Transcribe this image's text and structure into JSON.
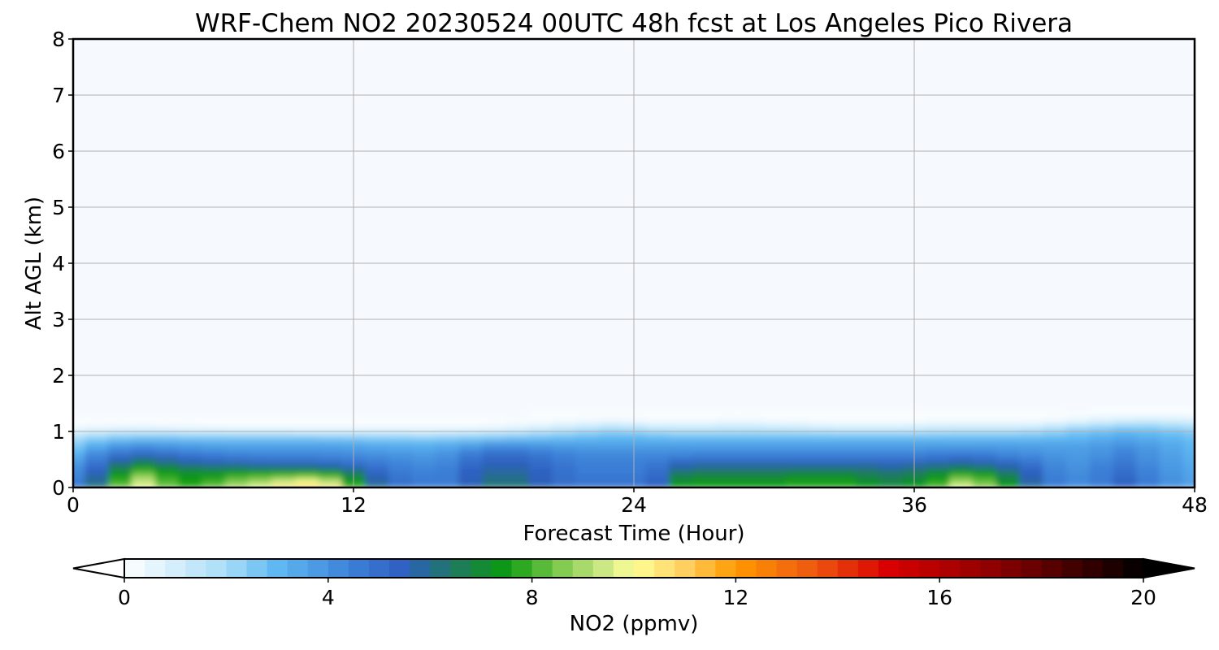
{
  "chart_data": {
    "type": "heatmap",
    "title": "WRF-Chem NO2  20230524 00UTC 48h fcst at Los Angeles Pico Rivera",
    "xlabel": "Forecast Time (Hour)",
    "ylabel": "Alt AGL (km)",
    "xlim": [
      0,
      48
    ],
    "ylim": [
      0,
      8
    ],
    "x_ticks": [
      "0",
      "12",
      "24",
      "36",
      "48"
    ],
    "y_ticks": [
      "0",
      "1",
      "2",
      "3",
      "4",
      "5",
      "6",
      "7",
      "8"
    ],
    "grid": true,
    "colorbar": {
      "label": "NO2  (ppmv)",
      "range": [
        0,
        20
      ],
      "ticks": [
        "0",
        "4",
        "8",
        "12",
        "16",
        "20"
      ],
      "extend": "both",
      "orientation": "horizontal",
      "colors": [
        {
          "value": 0,
          "color": "#ffffff"
        },
        {
          "value": 2,
          "color": "#a8dcf8"
        },
        {
          "value": 3,
          "color": "#5fb8f2"
        },
        {
          "value": 4.5,
          "color": "#3b7fd6"
        },
        {
          "value": 5.5,
          "color": "#2e5fc0"
        },
        {
          "value": 6.5,
          "color": "#1e7a5e"
        },
        {
          "value": 7.5,
          "color": "#0a9a10"
        },
        {
          "value": 8.5,
          "color": "#7bc84a"
        },
        {
          "value": 9.5,
          "color": "#d4ec8c"
        },
        {
          "value": 10,
          "color": "#ffff96"
        },
        {
          "value": 11,
          "color": "#ffd060"
        },
        {
          "value": 12,
          "color": "#ff9a00"
        },
        {
          "value": 13.5,
          "color": "#ee5a10"
        },
        {
          "value": 15,
          "color": "#d80000"
        },
        {
          "value": 17,
          "color": "#900000"
        },
        {
          "value": 19,
          "color": "#300000"
        },
        {
          "value": 20,
          "color": "#000000"
        }
      ]
    },
    "background_color": "#f6fafe",
    "x": [
      0,
      1,
      2,
      3,
      4,
      5,
      6,
      7,
      8,
      9,
      10,
      11,
      12,
      13,
      14,
      15,
      16,
      17,
      18,
      19,
      20,
      21,
      22,
      23,
      24,
      25,
      26,
      27,
      28,
      29,
      30,
      31,
      32,
      33,
      34,
      35,
      36,
      37,
      38,
      39,
      40,
      41,
      42,
      43,
      44,
      45,
      46,
      47,
      48
    ],
    "y": [
      0,
      0.1,
      0.2,
      0.3,
      0.4,
      0.5,
      0.6,
      0.7,
      0.8,
      0.9,
      1.0,
      1.1,
      1.2,
      1.3,
      1.4
    ],
    "z": [
      [
        4.8,
        6.2,
        8.5,
        9.8,
        8.4,
        7.8,
        8.4,
        9.2,
        9.8,
        10.8,
        11.4,
        10.6,
        8.0,
        6.0,
        5.0,
        4.6,
        4.6,
        5.6,
        6.2,
        6.2,
        5.6,
        5.0,
        4.8,
        4.8,
        4.8,
        5.5,
        7.4,
        7.6,
        7.6,
        7.6,
        7.6,
        7.8,
        7.8,
        7.8,
        7.4,
        7.0,
        7.4,
        8.2,
        9.8,
        8.8,
        7.4,
        5.8,
        4.6,
        4.2,
        4.6,
        5.4,
        4.6,
        4.0,
        3.6
      ],
      [
        4.6,
        6.0,
        8.0,
        9.4,
        8.2,
        7.6,
        8.0,
        8.6,
        9.0,
        9.6,
        10.0,
        9.4,
        7.6,
        5.8,
        4.9,
        4.6,
        4.6,
        5.6,
        6.2,
        6.2,
        5.6,
        5.0,
        4.8,
        4.8,
        4.8,
        5.4,
        7.2,
        7.4,
        7.4,
        7.4,
        7.4,
        7.6,
        7.6,
        7.6,
        7.2,
        6.8,
        7.2,
        7.8,
        9.0,
        8.4,
        7.2,
        5.8,
        4.6,
        4.2,
        4.6,
        5.4,
        4.6,
        4.0,
        3.6
      ],
      [
        4.4,
        5.8,
        7.6,
        8.8,
        7.8,
        7.4,
        7.6,
        8.0,
        8.2,
        8.4,
        8.6,
        8.2,
        7.0,
        5.6,
        4.8,
        4.5,
        4.6,
        5.5,
        6.0,
        6.0,
        5.5,
        5.0,
        4.7,
        4.7,
        4.7,
        5.2,
        6.8,
        7.0,
        7.0,
        7.0,
        7.0,
        7.2,
        7.2,
        7.2,
        6.8,
        6.6,
        6.8,
        7.4,
        8.2,
        7.8,
        6.8,
        5.6,
        4.5,
        4.2,
        4.6,
        5.2,
        4.5,
        4.0,
        3.6
      ],
      [
        4.2,
        5.4,
        7.0,
        8.0,
        7.4,
        7.0,
        7.0,
        7.2,
        7.2,
        7.2,
        7.2,
        7.0,
        6.2,
        5.2,
        4.6,
        4.4,
        4.5,
        5.4,
        5.8,
        5.8,
        5.4,
        4.9,
        4.6,
        4.6,
        4.6,
        5.0,
        6.2,
        6.4,
        6.4,
        6.4,
        6.4,
        6.6,
        6.6,
        6.6,
        6.4,
        6.2,
        6.4,
        6.8,
        7.2,
        7.0,
        6.2,
        5.4,
        4.4,
        4.1,
        4.5,
        5.0,
        4.4,
        3.9,
        3.5
      ],
      [
        4.0,
        5.0,
        6.4,
        7.2,
        6.6,
        6.2,
        6.0,
        6.0,
        5.8,
        5.8,
        5.8,
        5.6,
        5.2,
        4.8,
        4.4,
        4.2,
        4.4,
        5.2,
        5.6,
        5.6,
        5.2,
        4.8,
        4.5,
        4.5,
        4.5,
        4.8,
        5.6,
        5.8,
        5.8,
        5.8,
        5.8,
        5.8,
        5.8,
        5.8,
        5.8,
        5.6,
        5.8,
        6.0,
        6.2,
        6.0,
        5.6,
        5.0,
        4.3,
        4.0,
        4.4,
        4.8,
        4.3,
        3.8,
        3.4
      ],
      [
        3.6,
        4.6,
        5.6,
        6.2,
        5.8,
        5.4,
        5.2,
        5.0,
        4.9,
        4.8,
        4.8,
        4.7,
        4.6,
        4.4,
        4.2,
        4.0,
        4.2,
        4.9,
        5.3,
        5.3,
        5.0,
        4.6,
        4.4,
        4.4,
        4.4,
        4.5,
        4.9,
        5.0,
        5.0,
        5.0,
        5.0,
        5.0,
        5.0,
        5.0,
        5.0,
        5.0,
        5.0,
        5.2,
        5.4,
        5.2,
        4.9,
        4.6,
        4.1,
        3.9,
        4.2,
        4.6,
        4.1,
        3.7,
        3.3
      ],
      [
        3.2,
        4.2,
        4.8,
        5.2,
        5.0,
        4.7,
        4.5,
        4.4,
        4.3,
        4.3,
        4.3,
        4.2,
        4.1,
        4.0,
        3.9,
        3.8,
        4.0,
        4.6,
        5.0,
        5.0,
        4.7,
        4.4,
        4.2,
        4.2,
        4.2,
        4.2,
        4.3,
        4.4,
        4.4,
        4.4,
        4.4,
        4.4,
        4.4,
        4.4,
        4.4,
        4.4,
        4.4,
        4.5,
        4.6,
        4.5,
        4.3,
        4.1,
        3.9,
        3.8,
        4.0,
        4.4,
        4.0,
        3.6,
        3.2
      ],
      [
        2.8,
        3.6,
        4.2,
        4.4,
        4.2,
        4.0,
        3.9,
        3.8,
        3.8,
        3.8,
        3.8,
        3.8,
        3.7,
        3.6,
        3.5,
        3.4,
        3.6,
        4.0,
        4.4,
        4.4,
        4.2,
        4.0,
        3.9,
        3.9,
        3.9,
        3.9,
        3.9,
        3.9,
        3.9,
        3.9,
        3.9,
        3.9,
        3.9,
        3.9,
        3.9,
        3.9,
        3.9,
        4.0,
        4.0,
        4.0,
        3.9,
        3.8,
        3.7,
        3.7,
        3.9,
        4.2,
        3.9,
        3.5,
        3.1
      ],
      [
        2.4,
        3.0,
        3.4,
        3.6,
        3.5,
        3.4,
        3.3,
        3.3,
        3.3,
        3.3,
        3.3,
        3.3,
        3.2,
        3.1,
        3.0,
        3.0,
        3.1,
        3.3,
        3.6,
        3.6,
        3.5,
        3.4,
        3.4,
        3.4,
        3.4,
        3.4,
        3.4,
        3.4,
        3.4,
        3.4,
        3.4,
        3.4,
        3.4,
        3.4,
        3.4,
        3.4,
        3.4,
        3.4,
        3.4,
        3.4,
        3.4,
        3.4,
        3.4,
        3.4,
        3.6,
        3.8,
        3.6,
        3.3,
        3.0
      ],
      [
        1.8,
        2.2,
        2.5,
        2.6,
        2.6,
        2.5,
        2.5,
        2.5,
        2.5,
        2.5,
        2.5,
        2.4,
        2.4,
        2.3,
        2.3,
        2.2,
        2.3,
        2.4,
        2.5,
        2.6,
        2.7,
        2.8,
        2.9,
        3.0,
        3.0,
        2.9,
        2.8,
        2.8,
        2.8,
        2.8,
        2.8,
        2.8,
        2.8,
        2.8,
        2.8,
        2.8,
        2.8,
        2.8,
        2.8,
        2.8,
        2.8,
        2.8,
        2.9,
        3.0,
        3.2,
        3.4,
        3.2,
        3.0,
        2.8
      ],
      [
        0.9,
        1.1,
        1.3,
        1.3,
        1.3,
        1.2,
        1.2,
        1.1,
        1.1,
        1.1,
        1.0,
        1.0,
        1.0,
        1.0,
        1.0,
        0.9,
        1.0,
        1.1,
        1.2,
        1.4,
        1.7,
        2.0,
        2.2,
        2.4,
        2.3,
        2.1,
        2.0,
        2.0,
        2.0,
        2.0,
        2.0,
        2.0,
        1.9,
        1.8,
        1.8,
        1.8,
        1.8,
        1.9,
        2.0,
        2.0,
        2.0,
        2.1,
        2.3,
        2.6,
        2.8,
        3.0,
        2.9,
        2.7,
        2.5
      ],
      [
        0.3,
        0.4,
        0.4,
        0.5,
        0.4,
        0.4,
        0.3,
        0.3,
        0.3,
        0.3,
        0.3,
        0.3,
        0.3,
        0.3,
        0.3,
        0.3,
        0.3,
        0.3,
        0.4,
        0.5,
        0.7,
        0.9,
        1.1,
        1.3,
        1.2,
        1.0,
        1.0,
        1.0,
        1.1,
        1.1,
        1.0,
        0.9,
        0.8,
        0.7,
        0.7,
        0.7,
        0.8,
        0.9,
        0.9,
        0.9,
        0.9,
        1.0,
        1.3,
        1.7,
        2.0,
        2.2,
        2.2,
        2.0,
        1.8
      ],
      [
        0.1,
        0.1,
        0.1,
        0.1,
        0.1,
        0.1,
        0.1,
        0.1,
        0.1,
        0.1,
        0.1,
        0.1,
        0.1,
        0.1,
        0.1,
        0.1,
        0.1,
        0.1,
        0.1,
        0.2,
        0.2,
        0.3,
        0.4,
        0.5,
        0.4,
        0.3,
        0.3,
        0.3,
        0.4,
        0.4,
        0.3,
        0.3,
        0.2,
        0.2,
        0.2,
        0.2,
        0.2,
        0.3,
        0.3,
        0.3,
        0.3,
        0.3,
        0.4,
        0.6,
        0.8,
        1.0,
        1.1,
        1.0,
        0.9
      ],
      [
        0.0,
        0.0,
        0.0,
        0.0,
        0.0,
        0.0,
        0.0,
        0.0,
        0.0,
        0.0,
        0.0,
        0.0,
        0.0,
        0.0,
        0.0,
        0.0,
        0.0,
        0.0,
        0.0,
        0.0,
        0.1,
        0.1,
        0.1,
        0.1,
        0.1,
        0.1,
        0.1,
        0.1,
        0.1,
        0.1,
        0.1,
        0.1,
        0.1,
        0.1,
        0.1,
        0.1,
        0.1,
        0.1,
        0.1,
        0.1,
        0.1,
        0.1,
        0.1,
        0.2,
        0.3,
        0.3,
        0.3,
        0.3,
        0.3
      ],
      [
        0.0,
        0.0,
        0.0,
        0.0,
        0.0,
        0.0,
        0.0,
        0.0,
        0.0,
        0.0,
        0.0,
        0.0,
        0.0,
        0.0,
        0.0,
        0.0,
        0.0,
        0.0,
        0.0,
        0.0,
        0.0,
        0.0,
        0.0,
        0.0,
        0.0,
        0.0,
        0.0,
        0.0,
        0.0,
        0.0,
        0.0,
        0.0,
        0.0,
        0.0,
        0.0,
        0.0,
        0.0,
        0.0,
        0.0,
        0.0,
        0.0,
        0.0,
        0.0,
        0.0,
        0.1,
        0.1,
        0.1,
        0.1,
        0.1
      ]
    ]
  }
}
